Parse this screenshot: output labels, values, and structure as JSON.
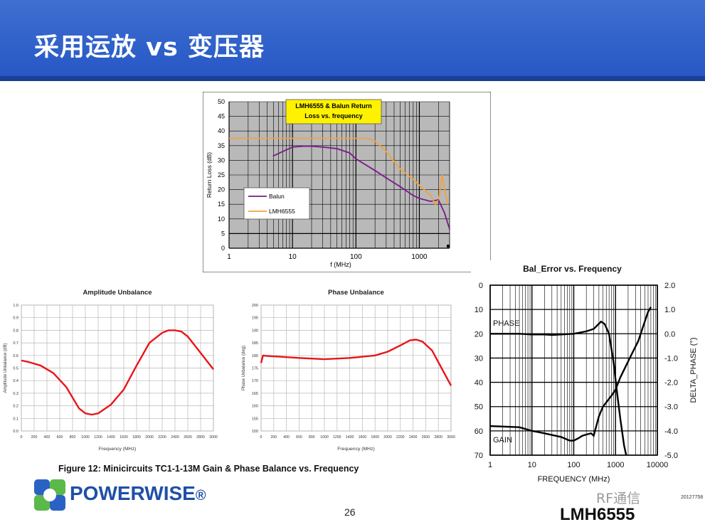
{
  "slide": {
    "title": "采用运放 vs 变压器",
    "figure_caption": "Figure 12: Minicircuits TC1-1-13M Gain & Phase Balance vs. Frequency",
    "logo_text": "POWERWISE",
    "logo_small": "®",
    "page_number": "26",
    "part_number": "LMH6555",
    "watermark": "RF通信",
    "figure_code": "20127758",
    "colors": {
      "header": "#2f60c8",
      "red_trace": "#e8161b",
      "purple_trace": "#7b1a8a",
      "orange_trace": "#f2a33a"
    }
  },
  "chart_data": [
    {
      "type": "line",
      "title": "LMH6555 & Balun Return Loss vs. frequency",
      "xlabel": "f (MHz)",
      "ylabel": "Return Loss (dB)",
      "xscale": "log",
      "xlim": [
        1,
        3000
      ],
      "ylim": [
        0,
        50
      ],
      "xticks": [
        "1",
        "10",
        "100",
        "1000"
      ],
      "yticks": [
        "0",
        "5",
        "10",
        "15",
        "20",
        "25",
        "30",
        "35",
        "40",
        "45",
        "50"
      ],
      "legend": "left",
      "grid": true,
      "series": [
        {
          "name": "Balun",
          "color": "#7b1a8a",
          "x": [
            5,
            7,
            10,
            15,
            20,
            30,
            50,
            80,
            100,
            200,
            300,
            500,
            800,
            1000,
            1500,
            2000,
            2500,
            3000
          ],
          "y": [
            31.5,
            33,
            34.5,
            34.8,
            34.8,
            34.5,
            34,
            32.5,
            30.5,
            26.5,
            24,
            21,
            18,
            17,
            16,
            16.5,
            12,
            6.5
          ]
        },
        {
          "name": "LMH6555",
          "color": "#f2a33a",
          "x": [
            1,
            10,
            50,
            100,
            150,
            200,
            300,
            500,
            800,
            1000,
            1500,
            1800,
            2000,
            2300,
            2500,
            2800
          ],
          "y": [
            37.5,
            37.5,
            37.5,
            37.5,
            37.5,
            36.5,
            33,
            27,
            23.5,
            21.5,
            18,
            15,
            16.5,
            25,
            20,
            15
          ]
        }
      ]
    },
    {
      "type": "line",
      "title": "Amplitude Unbalance",
      "xlabel": "Frequency (MHz)",
      "ylabel": "Amplitude Unbalance (dB)",
      "xlim": [
        0,
        3000
      ],
      "ylim": [
        0,
        1.0
      ],
      "xticks": [
        "0",
        "200",
        "400",
        "600",
        "800",
        "1000",
        "1200",
        "1400",
        "1600",
        "1800",
        "2000",
        "2200",
        "2400",
        "2600",
        "2800",
        "3000"
      ],
      "yticks": [
        "0.0",
        "0.1",
        "0.2",
        "0.3",
        "0.4",
        "0.5",
        "0.6",
        "0.7",
        "0.8",
        "0.9",
        "1.0"
      ],
      "grid": true,
      "series": [
        {
          "color": "#e8161b",
          "x": [
            0,
            100,
            300,
            500,
            700,
            900,
            1000,
            1100,
            1200,
            1400,
            1600,
            1800,
            2000,
            2200,
            2300,
            2400,
            2500,
            2600,
            2800,
            3000
          ],
          "y": [
            0.56,
            0.55,
            0.52,
            0.46,
            0.35,
            0.18,
            0.14,
            0.13,
            0.14,
            0.21,
            0.33,
            0.52,
            0.7,
            0.78,
            0.8,
            0.8,
            0.79,
            0.75,
            0.62,
            0.49
          ]
        }
      ]
    },
    {
      "type": "line",
      "title": "Phase Unbalance",
      "xlabel": "Frequency (MHz)",
      "ylabel": "Phase Unbalance (deg)",
      "xlim": [
        0,
        3000
      ],
      "ylim": [
        150,
        200
      ],
      "xticks": [
        "0",
        "200",
        "400",
        "600",
        "800",
        "1000",
        "1200",
        "1400",
        "1600",
        "1800",
        "2000",
        "2200",
        "2400",
        "2600",
        "2800",
        "3000"
      ],
      "yticks": [
        "150",
        "155",
        "160",
        "165",
        "170",
        "175",
        "180",
        "185",
        "190",
        "195",
        "200"
      ],
      "grid": true,
      "series": [
        {
          "color": "#e8161b",
          "x": [
            0,
            30,
            100,
            300,
            600,
            1000,
            1400,
            1800,
            2000,
            2200,
            2350,
            2450,
            2550,
            2700,
            2850,
            3000
          ],
          "y": [
            177,
            180,
            179.8,
            179.5,
            179,
            178.5,
            179,
            180,
            181.5,
            184,
            186,
            186.3,
            185.5,
            182,
            175,
            168
          ]
        }
      ]
    },
    {
      "type": "line",
      "title": "Bal_Error vs. Frequency",
      "xlabel": "FREQUENCY (MHz)",
      "ylabel": "DELTA_PHASE (°)",
      "xscale": "log",
      "xlim": [
        1,
        10000
      ],
      "ylim_left": [
        -70,
        0
      ],
      "ylim_right": [
        -5.0,
        2.0
      ],
      "xticks": [
        "1",
        "10",
        "100",
        "1000",
        "10000"
      ],
      "yticks_left": [
        "0",
        "10",
        "20",
        "30",
        "40",
        "50",
        "60",
        "70"
      ],
      "yticks_right": [
        "2.0",
        "1.0",
        "0.0",
        "-1.0",
        "-2.0",
        "-3.0",
        "-4.0",
        "-5.0"
      ],
      "grid": true,
      "annotations": [
        "PHASE",
        "GAIN"
      ],
      "series": [
        {
          "color": "#000000",
          "axis": "right",
          "x": [
            1,
            5,
            10,
            20,
            30,
            50,
            100,
            200,
            300,
            450,
            550,
            700,
            900,
            1100,
            1300,
            1600,
            1800
          ],
          "y": [
            0.0,
            0.0,
            -0.03,
            -0.03,
            -0.05,
            -0.03,
            0.0,
            0.1,
            0.2,
            0.5,
            0.4,
            0.0,
            -1.2,
            -2.5,
            -3.5,
            -4.6,
            -5.0
          ]
        },
        {
          "color": "#000000",
          "axis": "left",
          "x": [
            1,
            5,
            10,
            20,
            50,
            80,
            100,
            130,
            160,
            200,
            260,
            300,
            400,
            500,
            800,
            1000,
            1300,
            1800,
            2500,
            3500,
            5000,
            6000,
            7000
          ],
          "y": [
            -58,
            -58.5,
            -60,
            -61,
            -62.5,
            -64,
            -64,
            -63,
            -62,
            -61.5,
            -61,
            -62,
            -54,
            -50,
            -45.5,
            -43,
            -38,
            -33,
            -28,
            -23,
            -15,
            -11,
            -9
          ]
        }
      ]
    }
  ]
}
